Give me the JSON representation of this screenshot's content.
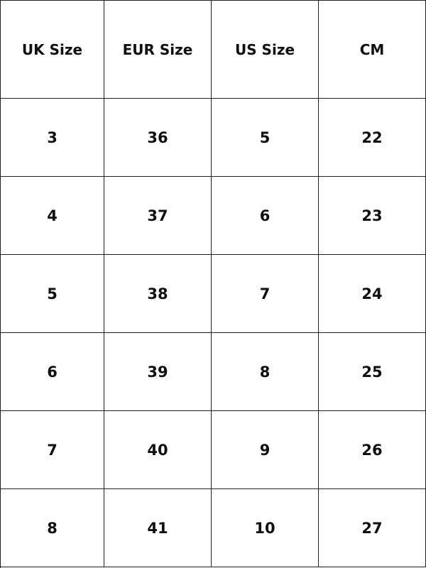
{
  "table": {
    "headers": [
      "UK Size",
      "EUR Size",
      "US Size",
      "CM"
    ],
    "rows": [
      [
        "3",
        "36",
        "5",
        "22"
      ],
      [
        "4",
        "37",
        "6",
        "23"
      ],
      [
        "5",
        "38",
        "7",
        "24"
      ],
      [
        "6",
        "39",
        "8",
        "25"
      ],
      [
        "7",
        "40",
        "9",
        "26"
      ],
      [
        "8",
        "41",
        "10",
        "27"
      ]
    ]
  }
}
